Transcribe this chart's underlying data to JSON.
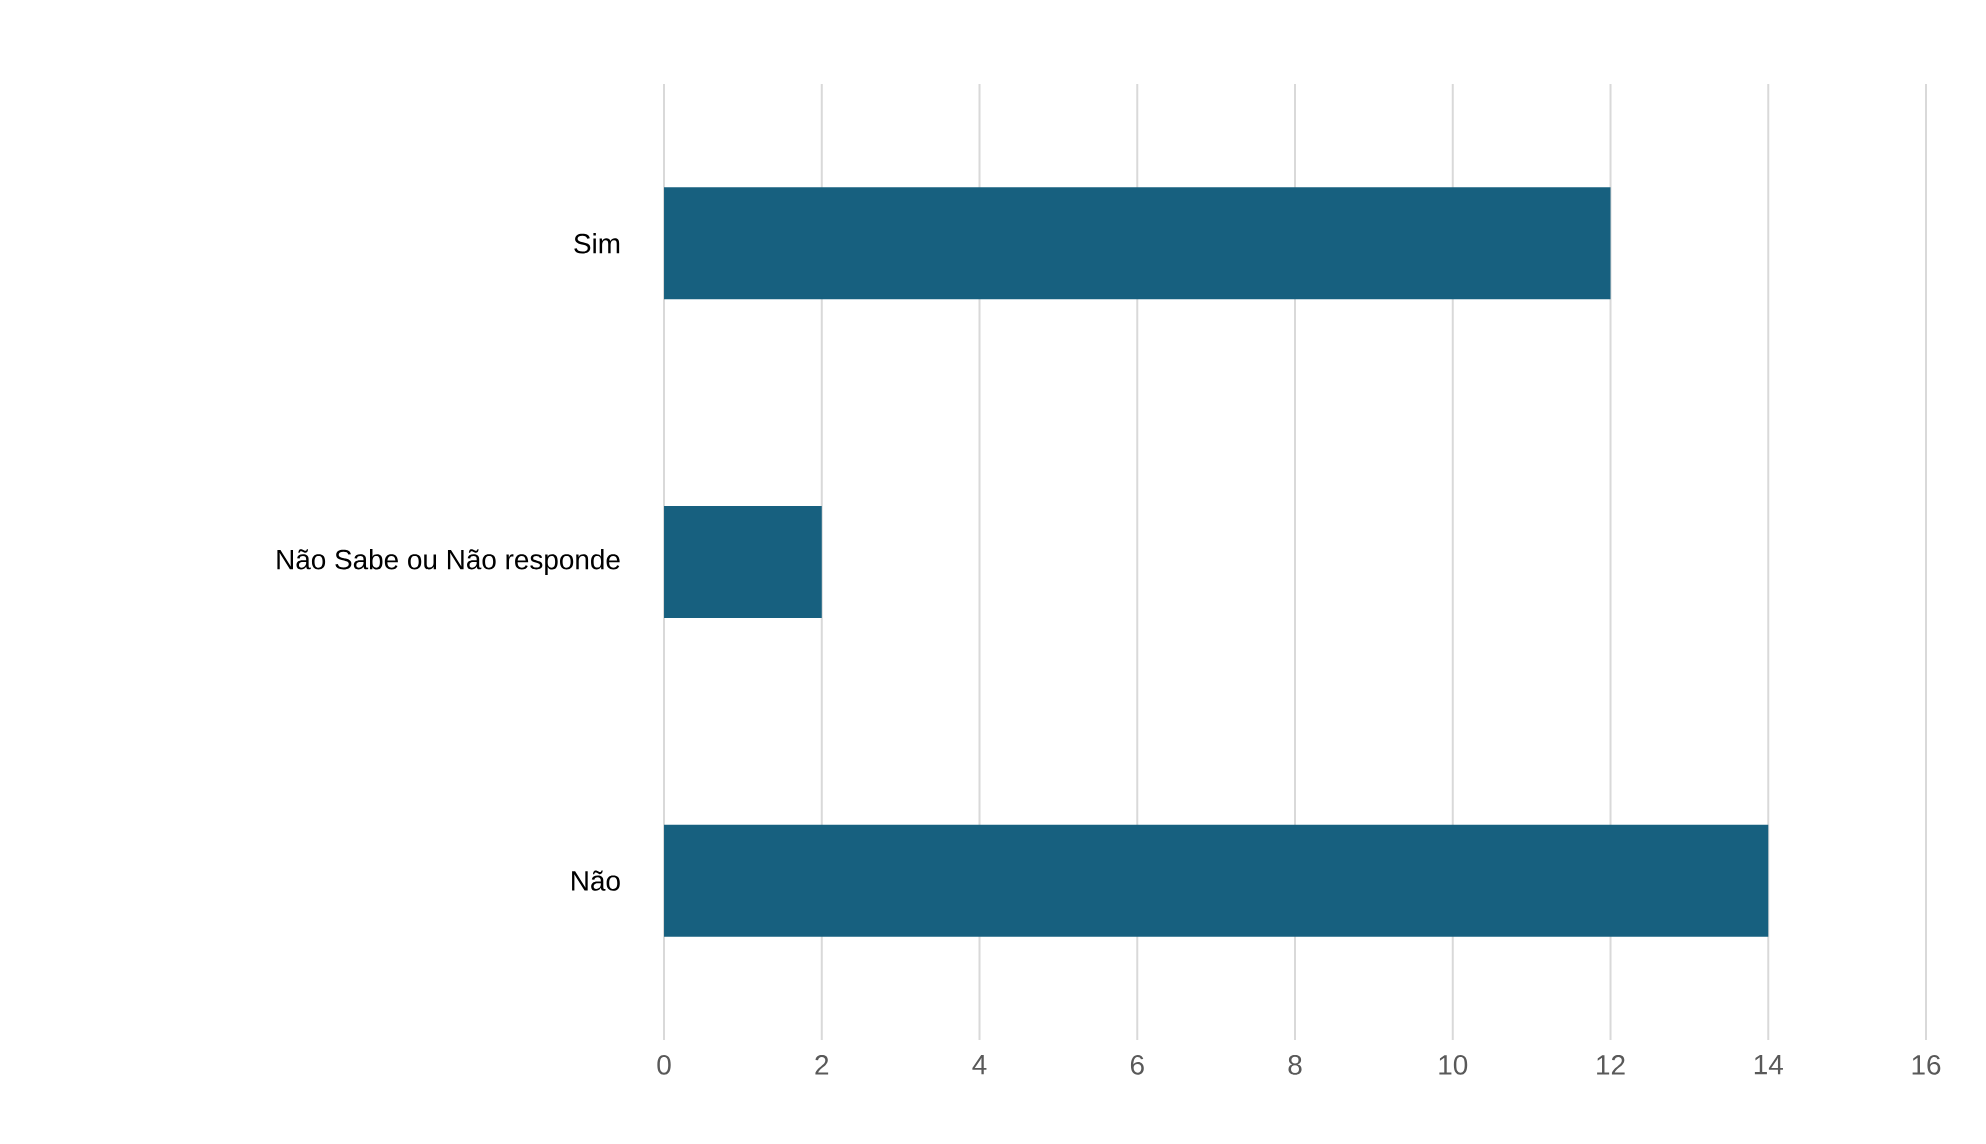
{
  "chart_data": {
    "type": "bar",
    "orientation": "horizontal",
    "categories": [
      "Sim",
      "Não Sabe ou Não responde",
      "Não"
    ],
    "values": [
      12,
      2,
      14
    ],
    "color": "#17607f",
    "xlim": [
      0,
      16
    ],
    "xticks": [
      0,
      2,
      4,
      6,
      8,
      10,
      12,
      14,
      16
    ],
    "grid": "x"
  }
}
